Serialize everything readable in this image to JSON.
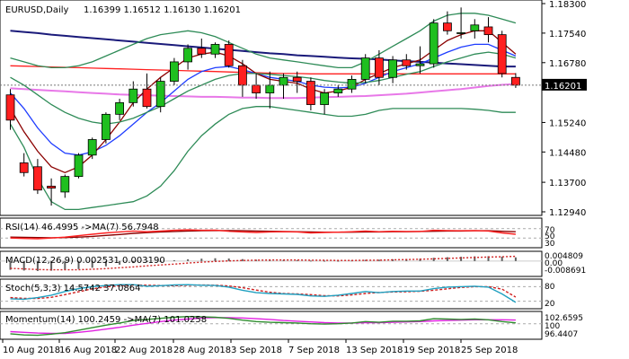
{
  "main": {
    "title": "EURUSD,Daily",
    "ohlc": "1.16399 1.16512 1.16130 1.16201",
    "price_badge": "1.16201",
    "price_axis": [
      {
        "label": "1.18300",
        "value": 1.183
      },
      {
        "label": "1.17540",
        "value": 1.1754
      },
      {
        "label": "1.16780",
        "value": 1.1678
      },
      {
        "label": "1.15240",
        "value": 1.1524
      },
      {
        "label": "1.14480",
        "value": 1.1448
      },
      {
        "label": "1.13700",
        "value": 1.137
      },
      {
        "label": "1.12940",
        "value": 1.1294
      }
    ]
  },
  "date_axis": [
    "10 Aug 2018",
    "16 Aug 2018",
    "22 Aug 2018",
    "28 Aug 2018",
    "3 Sep 2018",
    "7 Sep 2018",
    "13 Sep 2018",
    "19 Sep 2018",
    "25 Sep 2018"
  ],
  "indicators": {
    "rsi": {
      "label": "RSI(14) 46.4995 ->MA(7) 56.7948",
      "levels": [
        "70",
        "50",
        "30"
      ]
    },
    "macd": {
      "label": "MACD(12,26,9) 0.002531 0.003190",
      "levels": [
        "0.004809",
        "0.00",
        "-0.008691"
      ]
    },
    "stoch": {
      "label": "Stoch(5,3,3) 14.5742 37.0864",
      "levels": [
        "80",
        "20"
      ]
    },
    "momentum": {
      "label": "Momentum(14) 100.2459 ->MA(7) 101.0258",
      "levels": [
        "102.6595",
        "100",
        "96.4407"
      ]
    }
  },
  "colors": {
    "bull": "#1fbf1f",
    "bear": "#ff1f1f",
    "pink": "#e878e8",
    "navy": "#1a1a7a",
    "blue": "#1e3cff",
    "darkred": "#8b0000",
    "green": "#2e8b57",
    "grid": "#c8c8c8"
  },
  "chart_data": {
    "type": "candlestick",
    "symbol": "EURUSD",
    "timeframe": "Daily",
    "ylim": [
      1.1294,
      1.183
    ],
    "candles": [
      {
        "o": 1.1595,
        "h": 1.161,
        "l": 1.1505,
        "c": 1.153
      },
      {
        "o": 1.142,
        "h": 1.1445,
        "l": 1.1385,
        "c": 1.1395
      },
      {
        "o": 1.141,
        "h": 1.143,
        "l": 1.134,
        "c": 1.135
      },
      {
        "o": 1.136,
        "h": 1.138,
        "l": 1.131,
        "c": 1.1355
      },
      {
        "o": 1.1345,
        "h": 1.139,
        "l": 1.133,
        "c": 1.1385
      },
      {
        "o": 1.1385,
        "h": 1.1445,
        "l": 1.138,
        "c": 1.144
      },
      {
        "o": 1.144,
        "h": 1.1485,
        "l": 1.143,
        "c": 1.148
      },
      {
        "o": 1.148,
        "h": 1.155,
        "l": 1.147,
        "c": 1.1545
      },
      {
        "o": 1.1545,
        "h": 1.1585,
        "l": 1.153,
        "c": 1.1575
      },
      {
        "o": 1.1575,
        "h": 1.163,
        "l": 1.1565,
        "c": 1.161
      },
      {
        "o": 1.161,
        "h": 1.165,
        "l": 1.156,
        "c": 1.1565
      },
      {
        "o": 1.1565,
        "h": 1.164,
        "l": 1.155,
        "c": 1.163
      },
      {
        "o": 1.163,
        "h": 1.169,
        "l": 1.162,
        "c": 1.168
      },
      {
        "o": 1.168,
        "h": 1.1725,
        "l": 1.166,
        "c": 1.1715
      },
      {
        "o": 1.1715,
        "h": 1.174,
        "l": 1.169,
        "c": 1.17
      },
      {
        "o": 1.17,
        "h": 1.173,
        "l": 1.169,
        "c": 1.1725
      },
      {
        "o": 1.1725,
        "h": 1.1735,
        "l": 1.1665,
        "c": 1.167
      },
      {
        "o": 1.167,
        "h": 1.1685,
        "l": 1.159,
        "c": 1.162
      },
      {
        "o": 1.162,
        "h": 1.165,
        "l": 1.1585,
        "c": 1.16
      },
      {
        "o": 1.16,
        "h": 1.1655,
        "l": 1.156,
        "c": 1.162
      },
      {
        "o": 1.162,
        "h": 1.165,
        "l": 1.1585,
        "c": 1.164
      },
      {
        "o": 1.164,
        "h": 1.1655,
        "l": 1.16,
        "c": 1.163
      },
      {
        "o": 1.163,
        "h": 1.164,
        "l": 1.1555,
        "c": 1.157
      },
      {
        "o": 1.157,
        "h": 1.161,
        "l": 1.1545,
        "c": 1.16
      },
      {
        "o": 1.16,
        "h": 1.162,
        "l": 1.159,
        "c": 1.161
      },
      {
        "o": 1.161,
        "h": 1.1645,
        "l": 1.16,
        "c": 1.1635
      },
      {
        "o": 1.1635,
        "h": 1.17,
        "l": 1.1625,
        "c": 1.169
      },
      {
        "o": 1.169,
        "h": 1.171,
        "l": 1.162,
        "c": 1.164
      },
      {
        "o": 1.164,
        "h": 1.1695,
        "l": 1.1625,
        "c": 1.1685
      },
      {
        "o": 1.1685,
        "h": 1.17,
        "l": 1.166,
        "c": 1.167
      },
      {
        "o": 1.167,
        "h": 1.172,
        "l": 1.165,
        "c": 1.1675
      },
      {
        "o": 1.1675,
        "h": 1.179,
        "l": 1.1665,
        "c": 1.178
      },
      {
        "o": 1.178,
        "h": 1.181,
        "l": 1.175,
        "c": 1.176
      },
      {
        "o": 1.1755,
        "h": 1.182,
        "l": 1.174,
        "c": 1.1755
      },
      {
        "o": 1.176,
        "h": 1.179,
        "l": 1.174,
        "c": 1.1775
      },
      {
        "o": 1.177,
        "h": 1.1795,
        "l": 1.173,
        "c": 1.175
      },
      {
        "o": 1.175,
        "h": 1.176,
        "l": 1.164,
        "c": 1.165
      },
      {
        "o": 1.164,
        "h": 1.1651,
        "l": 1.1613,
        "c": 1.162
      }
    ],
    "overlays": [
      {
        "color": "navy",
        "values": [
          1.176,
          1.1757,
          1.1754,
          1.175,
          1.1747,
          1.1744,
          1.1741,
          1.1738,
          1.1735,
          1.1732,
          1.1729,
          1.1726,
          1.1723,
          1.172,
          1.1717,
          1.1714,
          1.1711,
          1.1708,
          1.1705,
          1.1702,
          1.17,
          1.1697,
          1.1695,
          1.1693,
          1.1691,
          1.1689,
          1.1688,
          1.1686,
          1.1684,
          1.1682,
          1.168,
          1.1678,
          1.1676,
          1.1674,
          1.1672,
          1.167,
          1.1668,
          1.1668
        ]
      },
      {
        "color": "pink",
        "values": [
          1.1612,
          1.161,
          1.1608,
          1.1606,
          1.1604,
          1.1602,
          1.16,
          1.1598,
          1.1596,
          1.1595,
          1.1594,
          1.1593,
          1.1592,
          1.1591,
          1.159,
          1.159,
          1.1589,
          1.1588,
          1.1588,
          1.1587,
          1.1587,
          1.1587,
          1.1588,
          1.1589,
          1.159,
          1.1591,
          1.1592,
          1.1594,
          1.1596,
          1.1598,
          1.1601,
          1.1604,
          1.1607,
          1.161,
          1.1614,
          1.1618,
          1.1621,
          1.1623
        ]
      },
      {
        "color": "bear",
        "values": [
          1.167,
          1.1669,
          1.1668,
          1.1667,
          1.1666,
          1.1665,
          1.1664,
          1.1663,
          1.1662,
          1.1661,
          1.166,
          1.1659,
          1.1658,
          1.1657,
          1.1656,
          1.1655,
          1.1654,
          1.1653,
          1.1652,
          1.1651,
          1.165,
          1.165,
          1.1649,
          1.1649,
          1.1649,
          1.1649,
          1.1649,
          1.1649,
          1.1649,
          1.1649,
          1.1649,
          1.1649,
          1.1649,
          1.1649,
          1.1649,
          1.1649,
          1.1649,
          1.1649
        ]
      },
      {
        "color": "blue",
        "values": [
          1.16,
          1.156,
          1.151,
          1.147,
          1.1445,
          1.144,
          1.1448,
          1.1465,
          1.149,
          1.152,
          1.155,
          1.1575,
          1.1605,
          1.1635,
          1.1655,
          1.1665,
          1.1668,
          1.166,
          1.165,
          1.164,
          1.1635,
          1.163,
          1.162,
          1.1615,
          1.1613,
          1.1615,
          1.1625,
          1.164,
          1.1655,
          1.1665,
          1.1675,
          1.169,
          1.1705,
          1.1718,
          1.1725,
          1.1725,
          1.171,
          1.1695
        ]
      },
      {
        "color": "darkred",
        "values": [
          1.156,
          1.15,
          1.145,
          1.141,
          1.1395,
          1.141,
          1.144,
          1.148,
          1.1525,
          1.1575,
          1.161,
          1.164,
          1.1665,
          1.169,
          1.17,
          1.1705,
          1.1695,
          1.1675,
          1.165,
          1.1635,
          1.163,
          1.1625,
          1.161,
          1.16,
          1.1605,
          1.1615,
          1.1635,
          1.165,
          1.1665,
          1.1675,
          1.1685,
          1.171,
          1.1735,
          1.175,
          1.176,
          1.176,
          1.173,
          1.17
        ]
      },
      {
        "color": "green",
        "values": [
          1.164,
          1.162,
          1.1595,
          1.157,
          1.155,
          1.1535,
          1.1525,
          1.152,
          1.1525,
          1.1535,
          1.155,
          1.1565,
          1.1585,
          1.1605,
          1.162,
          1.1635,
          1.1645,
          1.165,
          1.165,
          1.1648,
          1.1645,
          1.1642,
          1.1638,
          1.1632,
          1.1628,
          1.1625,
          1.1627,
          1.1632,
          1.164,
          1.1648,
          1.1655,
          1.1668,
          1.168,
          1.169,
          1.17,
          1.1705,
          1.17,
          1.169
        ]
      },
      {
        "color": "green",
        "values": [
          1.169,
          1.168,
          1.167,
          1.1665,
          1.1665,
          1.167,
          1.168,
          1.1695,
          1.171,
          1.1725,
          1.174,
          1.175,
          1.1755,
          1.176,
          1.1755,
          1.1745,
          1.173,
          1.1715,
          1.17,
          1.169,
          1.1685,
          1.168,
          1.1675,
          1.167,
          1.1665,
          1.1665,
          1.168,
          1.17,
          1.172,
          1.174,
          1.176,
          1.1785,
          1.18,
          1.1805,
          1.1805,
          1.18,
          1.179,
          1.178
        ]
      },
      {
        "color": "green",
        "values": [
          1.152,
          1.146,
          1.138,
          1.132,
          1.13,
          1.13,
          1.1305,
          1.131,
          1.1315,
          1.132,
          1.1335,
          1.136,
          1.14,
          1.145,
          1.149,
          1.152,
          1.1545,
          1.156,
          1.1565,
          1.1565,
          1.156,
          1.1555,
          1.155,
          1.1545,
          1.154,
          1.154,
          1.1545,
          1.1555,
          1.156,
          1.156,
          1.156,
          1.156,
          1.156,
          1.156,
          1.1558,
          1.1555,
          1.155,
          1.155
        ]
      }
    ],
    "rsi": {
      "ylim": [
        0,
        100
      ],
      "values": [
        30,
        28,
        27,
        30,
        34,
        40,
        46,
        52,
        56,
        60,
        57,
        60,
        63,
        65,
        63,
        64,
        59,
        56,
        54,
        56,
        57,
        56,
        52,
        54,
        55,
        57,
        60,
        57,
        59,
        58,
        58,
        63,
        62,
        61,
        62,
        60,
        52,
        46
      ],
      "ma": [
        34,
        33,
        32,
        31,
        32,
        34,
        37,
        41,
        45,
        50,
        53,
        56,
        58,
        60,
        61,
        62,
        62,
        61,
        60,
        59,
        58,
        57,
        56,
        55,
        55,
        55,
        56,
        56,
        57,
        57,
        58,
        59,
        60,
        60,
        61,
        61,
        59,
        57
      ]
    },
    "macd": {
      "ylim": [
        -0.008691,
        0.004809
      ],
      "hist": [
        -0.006,
        -0.0065,
        -0.0068,
        -0.0066,
        -0.0062,
        -0.0055,
        -0.0046,
        -0.0036,
        -0.0025,
        -0.0014,
        -0.0008,
        -0.0002,
        0.0005,
        0.0012,
        0.0016,
        0.0019,
        0.0017,
        0.0013,
        0.0009,
        0.0008,
        0.0007,
        0.0006,
        0.0003,
        0.0002,
        0.0002,
        0.0004,
        0.0008,
        0.0009,
        0.0012,
        0.0014,
        0.0016,
        0.0022,
        0.0026,
        0.0029,
        0.0032,
        0.0033,
        0.003,
        0.0025
      ],
      "signal": [
        -0.005,
        -0.0054,
        -0.0058,
        -0.006,
        -0.006,
        -0.0059,
        -0.0056,
        -0.0052,
        -0.0046,
        -0.004,
        -0.0033,
        -0.0027,
        -0.0021,
        -0.0014,
        -0.0008,
        -0.0003,
        0.0001,
        0.0004,
        0.0006,
        0.0007,
        0.0007,
        0.0007,
        0.0006,
        0.0005,
        0.0004,
        0.0004,
        0.0005,
        0.0006,
        0.0008,
        0.001,
        0.0012,
        0.0015,
        0.0018,
        0.0021,
        0.0024,
        0.0027,
        0.0029,
        0.0032
      ]
    },
    "stoch": {
      "ylim": [
        0,
        100
      ],
      "main": [
        30,
        28,
        35,
        45,
        60,
        72,
        80,
        85,
        88,
        88,
        82,
        84,
        87,
        88,
        86,
        85,
        78,
        65,
        55,
        52,
        50,
        48,
        42,
        40,
        45,
        52,
        60,
        55,
        60,
        62,
        62,
        72,
        78,
        80,
        82,
        78,
        50,
        15
      ],
      "signal": [
        35,
        32,
        31,
        36,
        47,
        59,
        71,
        79,
        84,
        87,
        86,
        85,
        84,
        86,
        87,
        86,
        83,
        76,
        66,
        57,
        52,
        50,
        47,
        43,
        42,
        46,
        52,
        56,
        58,
        59,
        61,
        65,
        71,
        77,
        80,
        80,
        70,
        37
      ]
    },
    "momentum": {
      "ylim": [
        96.4407,
        102.6595
      ],
      "values": [
        97.2,
        96.9,
        96.8,
        97.1,
        97.5,
        98.2,
        98.9,
        99.6,
        100.2,
        100.9,
        101.2,
        101.5,
        101.8,
        102.0,
        101.9,
        101.8,
        101.5,
        101.0,
        100.6,
        100.4,
        100.3,
        100.2,
        100.0,
        99.9,
        100.0,
        100.2,
        100.6,
        100.4,
        100.7,
        100.7,
        100.8,
        101.4,
        101.3,
        101.2,
        101.3,
        101.1,
        100.6,
        100.25
      ],
      "ma": [
        97.8,
        97.6,
        97.4,
        97.3,
        97.3,
        97.6,
        98.0,
        98.5,
        99.0,
        99.6,
        100.1,
        100.6,
        101.0,
        101.3,
        101.6,
        101.7,
        101.7,
        101.6,
        101.4,
        101.2,
        100.9,
        100.7,
        100.5,
        100.3,
        100.2,
        100.2,
        100.3,
        100.3,
        100.4,
        100.5,
        100.6,
        100.8,
        100.9,
        101.0,
        101.1,
        101.1,
        101.1,
        101.03
      ]
    }
  }
}
